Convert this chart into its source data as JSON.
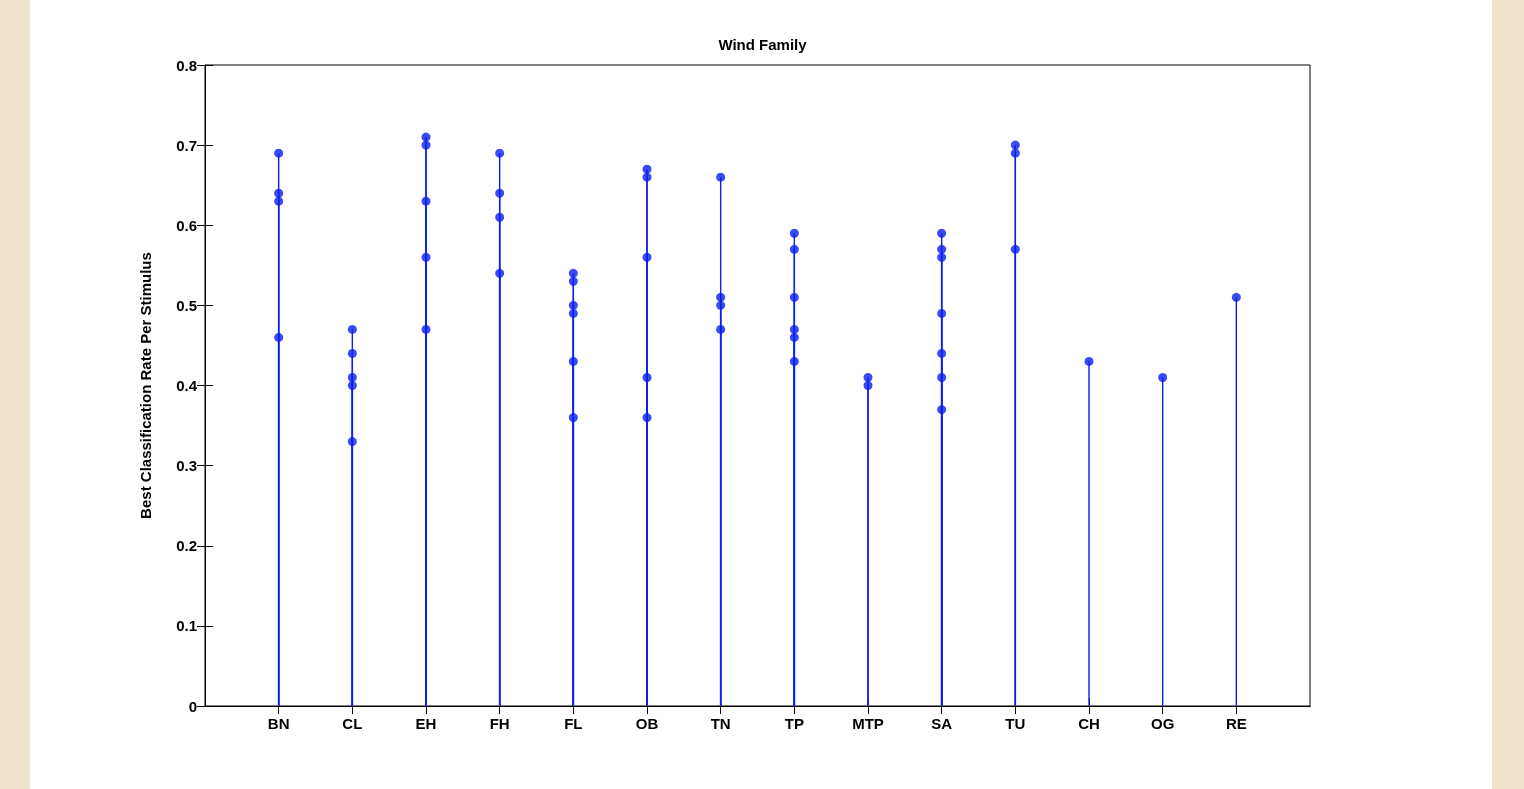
{
  "chart_data": {
    "type": "lollipop",
    "title": "Wind Family",
    "ylabel": "Best Classification Rate Per Stimulus",
    "categories": [
      "BN",
      "CL",
      "EH",
      "FH",
      "FL",
      "OB",
      "TN",
      "TP",
      "MTP",
      "SA",
      "TU",
      "CH",
      "OG",
      "RE"
    ],
    "series": [
      {
        "color": "#0a1ef0",
        "values": [
          0.69,
          0.47,
          0.71,
          0.69,
          0.54,
          0.67,
          0.66,
          0.59,
          0.41,
          0.59,
          0.7,
          0.43,
          0.41,
          0.51
        ]
      },
      {
        "color": "#0a1ef0",
        "values": [
          0.64,
          0.44,
          0.7,
          0.64,
          0.53,
          0.66,
          0.51,
          0.57,
          0.4,
          0.57,
          0.69,
          null,
          null,
          null
        ]
      },
      {
        "color": "#0a1ef0",
        "values": [
          0.63,
          0.41,
          0.63,
          0.61,
          0.5,
          0.56,
          0.5,
          0.51,
          null,
          0.56,
          0.57,
          null,
          null,
          null
        ]
      },
      {
        "color": "#0a1ef0",
        "values": [
          0.46,
          0.4,
          0.56,
          0.54,
          0.49,
          0.41,
          0.47,
          0.47,
          null,
          0.49,
          null,
          null,
          null,
          null
        ]
      },
      {
        "color": "#0a1ef0",
        "values": [
          null,
          0.33,
          0.47,
          null,
          0.43,
          0.36,
          null,
          0.46,
          null,
          0.44,
          null,
          null,
          null,
          null
        ]
      },
      {
        "color": "#0a1ef0",
        "values": [
          null,
          null,
          null,
          null,
          0.36,
          null,
          null,
          0.43,
          null,
          0.41,
          null,
          null,
          null,
          null
        ]
      },
      {
        "color": "#0a1ef0",
        "values": [
          null,
          null,
          null,
          null,
          null,
          null,
          null,
          null,
          null,
          0.37,
          null,
          null,
          null,
          null
        ]
      }
    ],
    "ylim": [
      0,
      0.8
    ],
    "yticks": [
      0,
      0.1,
      0.2,
      0.3,
      0.4,
      0.5,
      0.6,
      0.7,
      0.8
    ],
    "marker": "circle",
    "grid": false
  }
}
